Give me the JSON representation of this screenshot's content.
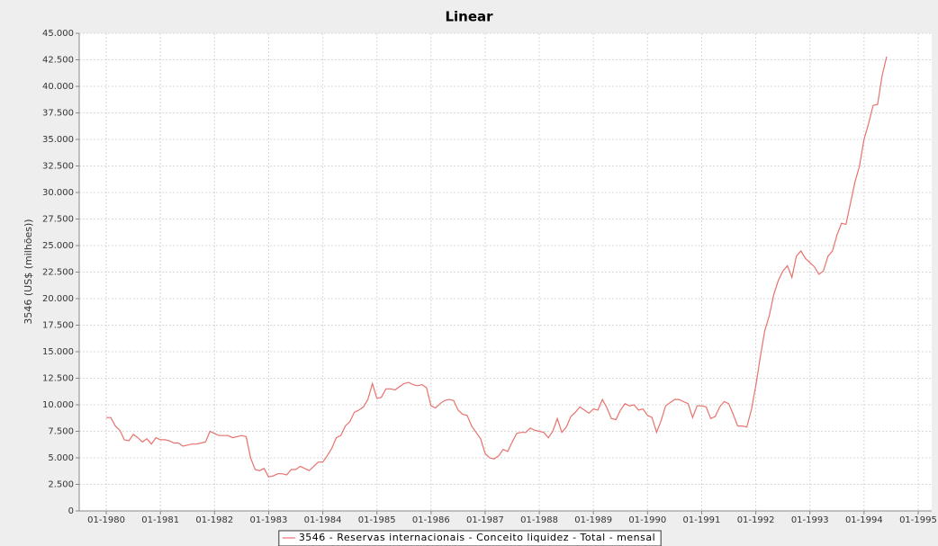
{
  "chart_data": {
    "type": "line",
    "title": "Linear",
    "y_label": "3546 (US$ (milhões))",
    "x": [
      "01-1980",
      "02-1980",
      "03-1980",
      "04-1980",
      "05-1980",
      "06-1980",
      "07-1980",
      "08-1980",
      "09-1980",
      "10-1980",
      "11-1980",
      "12-1980",
      "01-1981",
      "02-1981",
      "03-1981",
      "04-1981",
      "05-1981",
      "06-1981",
      "07-1981",
      "08-1981",
      "09-1981",
      "10-1981",
      "11-1981",
      "12-1981",
      "01-1982",
      "02-1982",
      "03-1982",
      "04-1982",
      "05-1982",
      "06-1982",
      "07-1982",
      "08-1982",
      "09-1982",
      "10-1982",
      "11-1982",
      "12-1982",
      "01-1983",
      "02-1983",
      "03-1983",
      "04-1983",
      "05-1983",
      "06-1983",
      "07-1983",
      "08-1983",
      "09-1983",
      "10-1983",
      "11-1983",
      "12-1983",
      "01-1984",
      "02-1984",
      "03-1984",
      "04-1984",
      "05-1984",
      "06-1984",
      "07-1984",
      "08-1984",
      "09-1984",
      "10-1984",
      "11-1984",
      "12-1984",
      "01-1985",
      "02-1985",
      "03-1985",
      "04-1985",
      "05-1985",
      "06-1985",
      "07-1985",
      "08-1985",
      "09-1985",
      "10-1985",
      "11-1985",
      "12-1985",
      "01-1986",
      "02-1986",
      "03-1986",
      "04-1986",
      "05-1986",
      "06-1986",
      "07-1986",
      "08-1986",
      "09-1986",
      "10-1986",
      "11-1986",
      "12-1986",
      "01-1987",
      "02-1987",
      "03-1987",
      "04-1987",
      "05-1987",
      "06-1987",
      "07-1987",
      "08-1987",
      "09-1987",
      "10-1987",
      "11-1987",
      "12-1987",
      "01-1988",
      "02-1988",
      "03-1988",
      "04-1988",
      "05-1988",
      "06-1988",
      "07-1988",
      "08-1988",
      "09-1988",
      "10-1988",
      "11-1988",
      "12-1988",
      "01-1989",
      "02-1989",
      "03-1989",
      "04-1989",
      "05-1989",
      "06-1989",
      "07-1989",
      "08-1989",
      "09-1989",
      "10-1989",
      "11-1989",
      "12-1989",
      "01-1990",
      "02-1990",
      "03-1990",
      "04-1990",
      "05-1990",
      "06-1990",
      "07-1990",
      "08-1990",
      "09-1990",
      "10-1990",
      "11-1990",
      "12-1990",
      "01-1991",
      "02-1991",
      "03-1991",
      "04-1991",
      "05-1991",
      "06-1991",
      "07-1991",
      "08-1991",
      "09-1991",
      "10-1991",
      "11-1991",
      "12-1991",
      "01-1992",
      "02-1992",
      "03-1992",
      "04-1992",
      "05-1992",
      "06-1992",
      "07-1992",
      "08-1992",
      "09-1992",
      "10-1992",
      "11-1992",
      "12-1992",
      "01-1993",
      "02-1993",
      "03-1993",
      "04-1993",
      "05-1993",
      "06-1993",
      "07-1993",
      "08-1993",
      "09-1993",
      "10-1993",
      "11-1993",
      "12-1993",
      "01-1994",
      "02-1994",
      "03-1994",
      "04-1994",
      "05-1994",
      "06-1994"
    ],
    "series": [
      {
        "name": "3546 - Reservas internacionais - Conceito liquidez - Total - mensal",
        "color": "#e8726e",
        "values": [
          8800,
          8800,
          8000,
          7600,
          6700,
          6600,
          7200,
          6900,
          6500,
          6800,
          6300,
          6900,
          6700,
          6700,
          6600,
          6400,
          6400,
          6100,
          6200,
          6300,
          6300,
          6400,
          6500,
          7500,
          7300,
          7100,
          7100,
          7100,
          6900,
          7000,
          7100,
          7000,
          5000,
          3900,
          3800,
          4000,
          3200,
          3300,
          3500,
          3500,
          3400,
          3900,
          3900,
          4200,
          4000,
          3800,
          4200,
          4600,
          4600,
          5200,
          5900,
          6900,
          7100,
          8000,
          8400,
          9300,
          9500,
          9800,
          10500,
          12000,
          10600,
          10700,
          11500,
          11500,
          11400,
          11700,
          12000,
          12100,
          11900,
          11800,
          11900,
          11600,
          9900,
          9700,
          10100,
          10400,
          10500,
          10400,
          9500,
          9100,
          9000,
          8000,
          7400,
          6800,
          5400,
          5000,
          4900,
          5200,
          5800,
          5600,
          6500,
          7300,
          7400,
          7400,
          7800,
          7600,
          7500,
          7400,
          6900,
          7500,
          8700,
          7400,
          7900,
          8900,
          9300,
          9800,
          9500,
          9200,
          9600,
          9500,
          10500,
          9700,
          8700,
          8600,
          9500,
          10100,
          9900,
          10000,
          9500,
          9600,
          9000,
          8800,
          7400,
          8500,
          9900,
          10200,
          10500,
          10500,
          10300,
          10100,
          8800,
          9900,
          9900,
          9800,
          8700,
          8900,
          9800,
          10300,
          10100,
          9100,
          8000,
          8000,
          7900,
          9500,
          11800,
          14500,
          17000,
          18400,
          20400,
          21700,
          22600,
          23100,
          22000,
          24000,
          24500,
          23800,
          23400,
          23000,
          22300,
          22600,
          24000,
          24500,
          26000,
          27100,
          27000,
          29000,
          31000,
          32500,
          35000,
          36500,
          38200,
          38300,
          41000,
          42800
        ]
      }
    ],
    "xlim": [
      "07-1979",
      "04-1995"
    ],
    "xticks": [
      "01-1980",
      "01-1981",
      "01-1982",
      "01-1983",
      "01-1984",
      "01-1985",
      "01-1986",
      "01-1987",
      "01-1988",
      "01-1989",
      "01-1990",
      "01-1991",
      "01-1992",
      "01-1993",
      "01-1994",
      "01-1995"
    ],
    "ylim": [
      0,
      45000
    ],
    "yticks": [
      0,
      {
        "value": 2500,
        "label": "2.500"
      },
      {
        "value": 5000,
        "label": "5.000"
      },
      {
        "value": 7500,
        "label": "7.500"
      },
      {
        "value": 10000,
        "label": "10.000"
      },
      {
        "value": 12500,
        "label": "12.500"
      },
      {
        "value": 15000,
        "label": "15.000"
      },
      {
        "value": 17500,
        "label": "17.500"
      },
      {
        "value": 20000,
        "label": "20.000"
      },
      {
        "value": 22500,
        "label": "22.500"
      },
      {
        "value": 25000,
        "label": "25.000"
      },
      {
        "value": 27500,
        "label": "27.500"
      },
      {
        "value": 30000,
        "label": "30.000"
      },
      {
        "value": 32500,
        "label": "32.500"
      },
      {
        "value": 35000,
        "label": "35.000"
      },
      {
        "value": 37500,
        "label": "37.500"
      },
      {
        "value": 40000,
        "label": "40.000"
      },
      {
        "value": 42500,
        "label": "42.500"
      },
      {
        "value": 45000,
        "label": "45.000"
      }
    ],
    "grid": true,
    "legend": "bottom"
  }
}
